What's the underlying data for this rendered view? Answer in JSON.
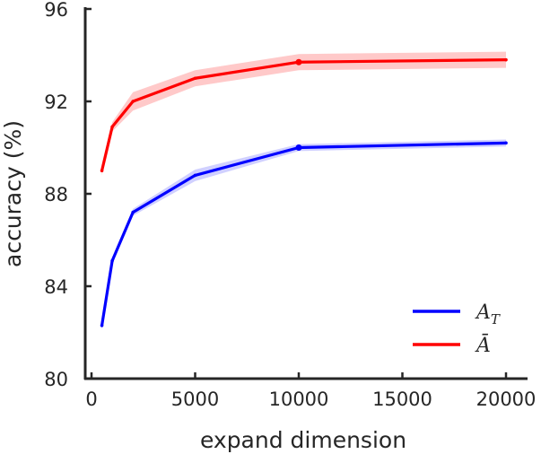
{
  "chart_data": {
    "type": "line",
    "xlabel": "expand dimension",
    "ylabel": "accuracy (%)",
    "xlim": [
      0,
      20000
    ],
    "ylim": [
      80,
      96
    ],
    "xticks": [
      0,
      5000,
      10000,
      15000,
      20000
    ],
    "yticks": [
      80,
      84,
      88,
      92,
      96
    ],
    "grid": false,
    "legend_position": "bottom-right",
    "x": [
      500,
      1000,
      2000,
      5000,
      10000,
      20000
    ],
    "series": [
      {
        "name": "A_T",
        "color": "#0000ff",
        "values": [
          82.3,
          85.1,
          87.2,
          88.8,
          90.0,
          90.2
        ],
        "band": [
          0.2,
          0.15,
          0.15,
          0.25,
          0.15,
          0.15
        ]
      },
      {
        "name": "Ā",
        "color": "#ff0000",
        "values": [
          89.0,
          90.9,
          92.0,
          93.0,
          93.7,
          93.8
        ],
        "band": [
          0.2,
          0.2,
          0.4,
          0.35,
          0.35,
          0.35
        ]
      }
    ]
  }
}
